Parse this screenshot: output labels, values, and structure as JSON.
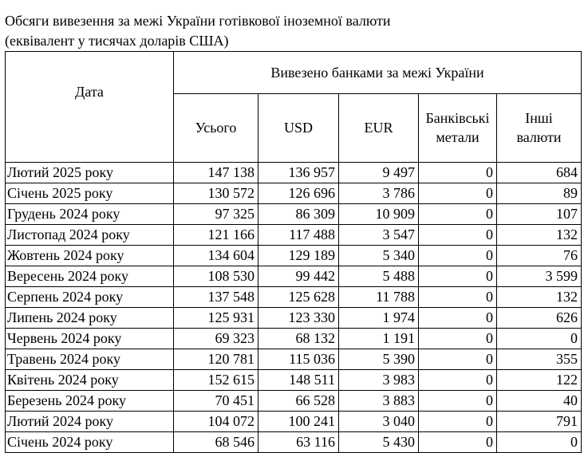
{
  "title_line1": "Обсяги вивезення за межі України готівкової іноземної валюти",
  "title_line2": "(еквівалент у тисячах доларів США)",
  "headers": {
    "date": "Дата",
    "group": "Вивезено банками за межі України",
    "total": "Усього",
    "usd": "USD",
    "eur": "EUR",
    "metals_1": "Банківські",
    "metals_2": "метали",
    "other_1": "Інші",
    "other_2": "валюти"
  },
  "rows": [
    [
      "Лютий 2025 року",
      "147 138",
      "136 957",
      "9 497",
      "0",
      "684"
    ],
    [
      "Січень 2025 року",
      "130 572",
      "126 696",
      "3 786",
      "0",
      "89"
    ],
    [
      "Грудень 2024 року",
      "97 325",
      "86 309",
      "10 909",
      "0",
      "107"
    ],
    [
      "Листопад 2024 року",
      "121 166",
      "117 488",
      "3 547",
      "0",
      "132"
    ],
    [
      "Жовтень 2024 року",
      "134 604",
      "129 189",
      "5 340",
      "0",
      "76"
    ],
    [
      "Вересень 2024 року",
      "108 530",
      "99 442",
      "5 488",
      "0",
      "3 599"
    ],
    [
      "Серпень 2024 року",
      "137 548",
      "125 628",
      "11 788",
      "0",
      "132"
    ],
    [
      "Липень 2024 року",
      "125 931",
      "123 330",
      "1 974",
      "0",
      "626"
    ],
    [
      "Червень 2024 року",
      "69 323",
      "68 132",
      "1 191",
      "0",
      "0"
    ],
    [
      "Травень 2024 року",
      "120 781",
      "115 036",
      "5 390",
      "0",
      "355"
    ],
    [
      "Квітень 2024 року",
      "152 615",
      "148 511",
      "3 983",
      "0",
      "122"
    ],
    [
      "Березень 2024 року",
      "70 451",
      "66 528",
      "3 883",
      "0",
      "40"
    ],
    [
      "Лютий 2024 року",
      "104 072",
      "100 241",
      "3 040",
      "0",
      "791"
    ],
    [
      "Січень 2024 року",
      "68 546",
      "63 116",
      "5 430",
      "0",
      "0"
    ]
  ]
}
